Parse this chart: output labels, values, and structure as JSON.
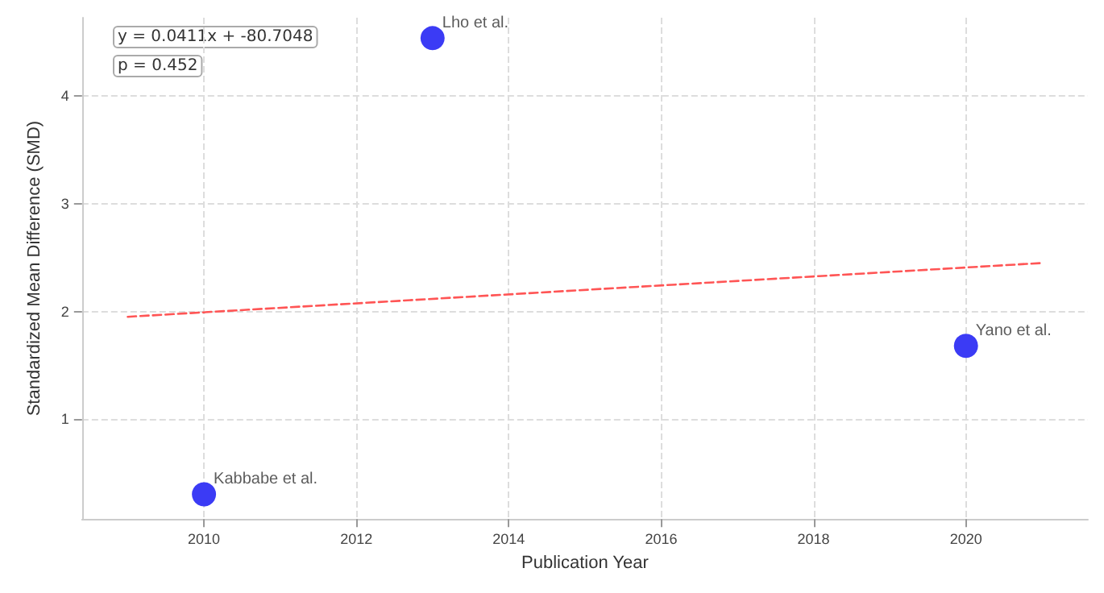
{
  "chart_data": {
    "type": "scatter",
    "xlabel": "Publication Year",
    "ylabel": "Standardized Mean Difference (SMD)",
    "series": [
      {
        "color": "#3b3bf5",
        "x": [
          2010,
          2013,
          2020
        ],
        "values": [
          0.3,
          4.54,
          1.68
        ],
        "marker": "circle"
      },
      {
        "type": "line",
        "color": "#ff5555",
        "x": [
          2009,
          2021
        ],
        "values": [
          1.95,
          2.45
        ],
        "line_style": "dashed",
        "marker": "none"
      }
    ],
    "annotations": [
      {
        "text": "Kabbabe et al.",
        "x": 2010,
        "y": 0.3
      },
      {
        "text": "Lho et al.",
        "x": 2013,
        "y": 4.54
      },
      {
        "text": "Yano et al.",
        "x": 2020,
        "y": 1.68
      },
      "y = 0.0411x + -80.7048",
      "p = 0.452"
    ],
    "xlim": [
      2008.4,
      2021.6
    ],
    "xticks": [
      2010,
      2012,
      2014,
      2016,
      2018,
      2020
    ],
    "ylim": [
      0.07,
      4.73
    ],
    "yticks": [
      1,
      2,
      3,
      4
    ],
    "grid": true
  }
}
